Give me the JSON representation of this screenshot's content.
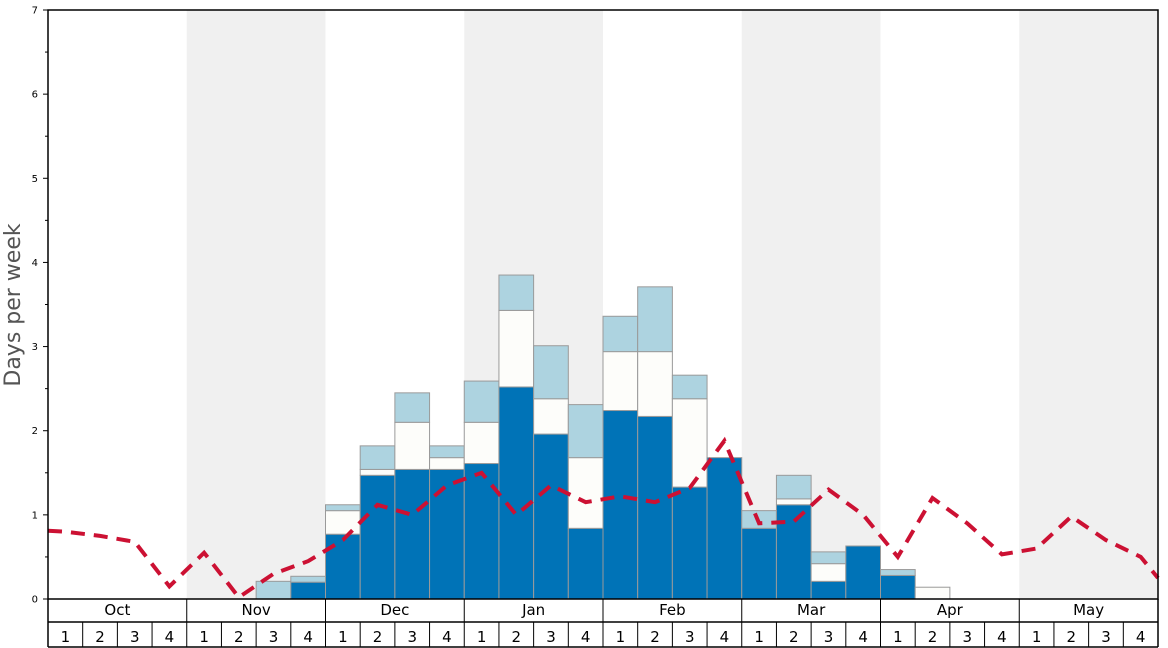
{
  "colors": {
    "band": "#f0f0f0",
    "solid": "#0073b7",
    "mid": "#fdfdfa",
    "light": "#add3e0",
    "avg_line": "#cc1133",
    "bar_edge": "#9a9a9a",
    "axis": "#000000"
  },
  "chart_data": {
    "type": "bar",
    "stacked": true,
    "ylabel": "Days per week",
    "xlabel": "",
    "title": "",
    "ylim": [
      0,
      7
    ],
    "y_ticks": [
      "0",
      "1",
      "2",
      "3",
      "4",
      "5",
      "6",
      "7"
    ],
    "months": [
      "Oct",
      "Nov",
      "Dec",
      "Jan",
      "Feb",
      "Mar",
      "Apr",
      "May"
    ],
    "weeks": [
      "1",
      "2",
      "3",
      "4"
    ],
    "shaded_months": [
      "Nov",
      "Jan",
      "Mar",
      "May"
    ],
    "series": [
      {
        "name": "solid",
        "values": [
          0,
          0,
          0,
          0,
          0,
          0,
          0,
          0.2,
          0.77,
          1.47,
          1.54,
          1.54,
          1.61,
          2.52,
          1.96,
          0.84,
          2.24,
          2.17,
          1.33,
          1.68,
          0.84,
          1.12,
          0.21,
          0.63,
          0.28,
          0,
          0,
          0,
          0,
          0,
          0,
          0
        ]
      },
      {
        "name": "mid",
        "values": [
          0,
          0,
          0,
          0,
          0,
          0,
          0,
          0,
          0.28,
          0.07,
          0.56,
          0.14,
          0.49,
          0.91,
          0.42,
          0.84,
          0.7,
          0.77,
          1.05,
          0,
          0,
          0.07,
          0.21,
          0,
          0,
          0.14,
          0,
          0,
          0,
          0,
          0,
          0
        ]
      },
      {
        "name": "light",
        "values": [
          0,
          0,
          0,
          0,
          0,
          0,
          0.21,
          0.07,
          0.07,
          0.28,
          0.35,
          0.14,
          0.49,
          0.42,
          0.63,
          0.63,
          0.42,
          0.77,
          0.28,
          0,
          0.21,
          0.28,
          0.14,
          0,
          0.07,
          0,
          0,
          0,
          0,
          0,
          0,
          0
        ]
      }
    ],
    "average_line": {
      "name": "average",
      "values": [
        0.8,
        0.75,
        0.68,
        0.15,
        0.55,
        0.02,
        0.3,
        0.45,
        0.7,
        1.12,
        1.0,
        1.35,
        1.5,
        1.0,
        1.35,
        1.15,
        1.22,
        1.15,
        1.32,
        1.88,
        0.9,
        0.92,
        1.3,
        1.0,
        0.5,
        1.2,
        0.9,
        0.53,
        0.6,
        0.98,
        0.7,
        0.5
      ]
    },
    "avg_line_endpoints": [
      0.81,
      0.25
    ],
    "grid": false
  }
}
